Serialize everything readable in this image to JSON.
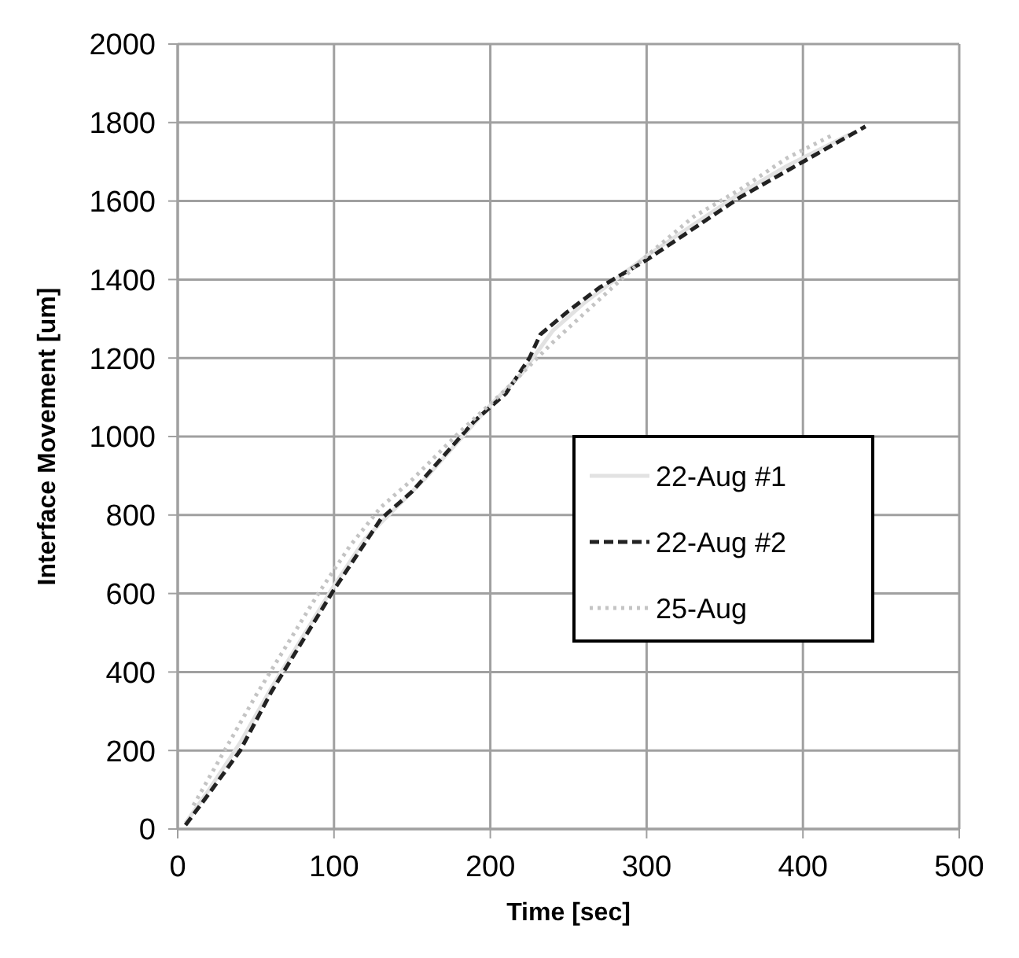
{
  "chart_data": {
    "type": "line",
    "xlabel": "Time [sec]",
    "ylabel": "Interface Movement [um]",
    "xlim": [
      0,
      500
    ],
    "xticks": [
      0,
      100,
      200,
      300,
      400,
      500
    ],
    "ylim": [
      0,
      2000
    ],
    "yticks": [
      0,
      200,
      400,
      600,
      800,
      1000,
      1200,
      1400,
      1600,
      1800,
      2000
    ],
    "grid": true,
    "legend": "right",
    "series": [
      {
        "name": "22-Aug #1",
        "color": "#e2e2e2",
        "line_style": "solid",
        "x": [
          5,
          20,
          40,
          60,
          80,
          100,
          120,
          140,
          160,
          180,
          200,
          220,
          240,
          260,
          280,
          300,
          330,
          360,
          390,
          430
        ],
        "values": [
          15,
          100,
          220,
          360,
          490,
          620,
          740,
          820,
          900,
          990,
          1080,
          1160,
          1270,
          1340,
          1400,
          1460,
          1540,
          1620,
          1690,
          1770
        ]
      },
      {
        "name": "22-Aug #2",
        "color": "#222222",
        "line_style": "dashed",
        "x": [
          5,
          20,
          40,
          60,
          80,
          100,
          120,
          130,
          150,
          170,
          190,
          210,
          225,
          232,
          250,
          270,
          300,
          330,
          360,
          400,
          440
        ],
        "values": [
          10,
          90,
          200,
          350,
          480,
          610,
          730,
          790,
          860,
          950,
          1040,
          1110,
          1200,
          1260,
          1320,
          1380,
          1450,
          1530,
          1610,
          1700,
          1790
        ]
      },
      {
        "name": "25-Aug",
        "color": "#c4c4c4",
        "line_style": "dotted",
        "x": [
          10,
          30,
          50,
          70,
          90,
          110,
          130,
          150,
          180,
          210,
          240,
          270,
          300,
          330,
          360,
          390,
          420
        ],
        "values": [
          60,
          200,
          340,
          470,
          600,
          720,
          820,
          890,
          1010,
          1120,
          1240,
          1350,
          1460,
          1560,
          1630,
          1710,
          1770
        ]
      }
    ]
  }
}
